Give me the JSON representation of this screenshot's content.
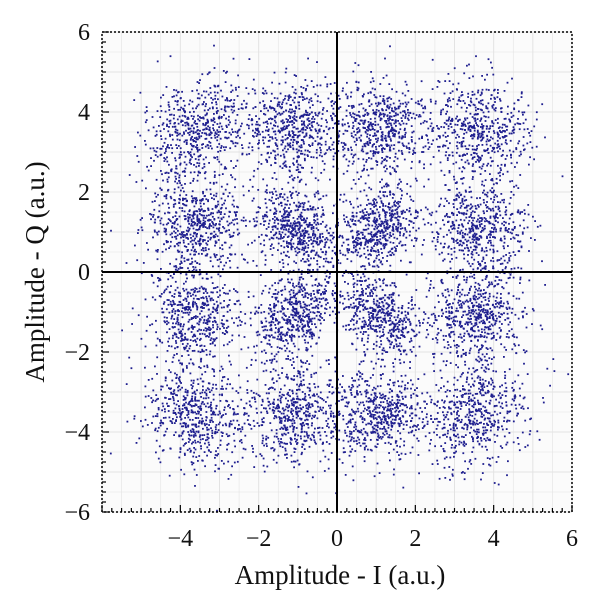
{
  "chart_data": {
    "type": "scatter",
    "title": "",
    "xlabel": "Amplitude - I (a.u.)",
    "ylabel": "Amplitude - Q (a.u.)",
    "xlim": [
      -6,
      6
    ],
    "ylim": [
      -6,
      6
    ],
    "x_ticks": [
      -4,
      -2,
      0,
      2,
      4,
      6
    ],
    "y_ticks": [
      -6,
      -4,
      -2,
      0,
      2,
      4,
      6
    ],
    "x_tick_labels": [
      "−4",
      "−2",
      "0",
      "2",
      "4",
      "6"
    ],
    "y_tick_labels": [
      "−6",
      "−4",
      "−2",
      "0",
      "2",
      "4",
      "6"
    ],
    "grid": true,
    "legend": "none",
    "marker_color": "#1f1f8f",
    "grid_color": "#e3e3e3",
    "axis_color": "#000000",
    "clusters_description": "16-QAM-like constellation, noisy",
    "clusters": {
      "centers_I": [
        -3.6,
        -1.1,
        1.1,
        3.6
      ],
      "centers_Q": [
        -3.6,
        -1.1,
        1.1,
        3.6
      ],
      "spread": 0.85
    },
    "approx_point_count": 9000
  }
}
